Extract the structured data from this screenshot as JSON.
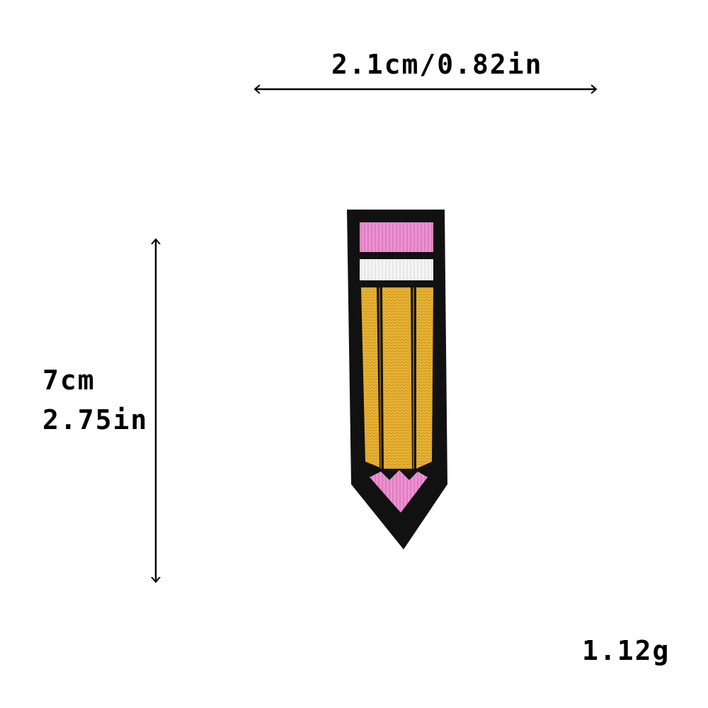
{
  "dimensions": {
    "width_text": "2.1cm/0.82in",
    "height_cm_text": "7cm",
    "height_in_text": "2.75in"
  },
  "weight_text": "1.12g",
  "product": {
    "name_icon": "pencil-embroidered-patch",
    "colors": {
      "border": "#111111",
      "eraser": "#e27fc3",
      "ferrule": "#f2f2f2",
      "body": "#d9a022",
      "body_dark": "#8a5a10",
      "tip": "#ea8fd6"
    }
  }
}
